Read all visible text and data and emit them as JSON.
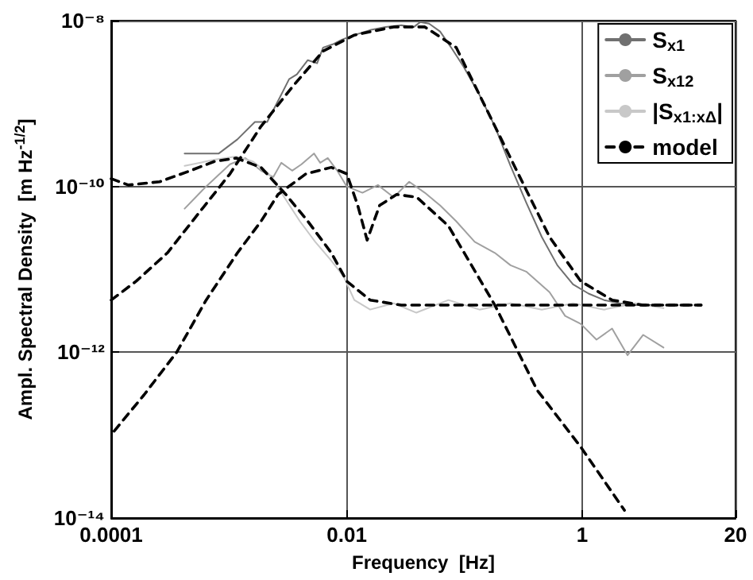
{
  "chart_data": {
    "type": "line",
    "xlabel": "Frequency  [Hz]",
    "ylabel": "Ampl. Spectral Density  [m Hz$^{-1/2}$]",
    "log": "xy",
    "grid": true,
    "legend": "top right",
    "marker": "none",
    "xlim": [
      0.0001,
      20
    ],
    "xticks": [
      0.0001,
      0.01,
      1,
      20
    ],
    "ylim": [
      1e-14,
      1e-08
    ],
    "yticks": [
      {
        "value": 1e-14,
        "label": "10⁻¹⁴"
      },
      {
        "value": 1e-12,
        "label": "10⁻¹²"
      },
      {
        "value": 1e-10,
        "label": "10⁻¹⁰"
      },
      {
        "value": 1e-08,
        "label": "10⁻⁸"
      }
    ],
    "series": [
      {
        "name": "S$_{x1}$",
        "color": "#707070",
        "line_style": "solid",
        "x": [
          0.00042,
          0.00082,
          0.00118,
          0.00166,
          0.00211,
          0.00269,
          0.00324,
          0.00377,
          0.00467,
          0.0056,
          0.0063,
          0.0076,
          0.0091,
          0.0116,
          0.0158,
          0.0214,
          0.0291,
          0.0372,
          0.042,
          0.05,
          0.062,
          0.077,
          0.098,
          0.134,
          0.181,
          0.246,
          0.334,
          0.453,
          0.614,
          0.834,
          1.13,
          1.53,
          2.08,
          2.82,
          4.89
        ],
        "values": [
          2.5e-10,
          2.5e-10,
          3.7e-10,
          6e-10,
          6e-10,
          1.17e-09,
          1.97e-09,
          2.25e-09,
          3.34e-09,
          3.06e-09,
          4.74e-09,
          5.18e-09,
          5.9e-09,
          6.7e-09,
          7.7e-09,
          8.4e-09,
          8.8e-09,
          8.4e-09,
          9.6e-09,
          9.2e-09,
          7.4e-09,
          4.74e-09,
          2.8e-09,
          1.27e-09,
          5.3e-10,
          1.77e-10,
          6.4e-11,
          2.46e-11,
          1.12e-11,
          6.6e-12,
          5.1e-12,
          4.26e-12,
          3.9e-12,
          3.7e-12,
          3.7e-12
        ]
      },
      {
        "name": "S$_{x12}$",
        "color": "#a0a0a0",
        "line_style": "solid",
        "x": [
          0.00042,
          0.00064,
          0.00102,
          0.00138,
          0.00187,
          0.00238,
          0.00278,
          0.00344,
          0.00413,
          0.00527,
          0.00595,
          0.0069,
          0.0083,
          0.01,
          0.0136,
          0.0184,
          0.025,
          0.0339,
          0.046,
          0.062,
          0.085,
          0.122,
          0.181,
          0.246,
          0.334,
          0.527,
          0.715,
          0.97,
          1.32,
          1.79,
          2.42,
          3.29,
          4.89
        ],
        "values": [
          5.4e-11,
          1e-10,
          1.85e-10,
          2.2e-10,
          1.55e-10,
          1.3e-10,
          1.93e-10,
          1.55e-10,
          1.85e-10,
          2.5e-10,
          1.93e-10,
          2.2e-10,
          1.55e-10,
          1e-10,
          8.4e-11,
          1.04e-10,
          7.4e-11,
          1.14e-10,
          8.4e-11,
          5.9e-11,
          3.8e-11,
          2.15e-11,
          1.58e-11,
          1.12e-11,
          9.4e-12,
          5.3e-12,
          2.74e-12,
          2.2e-12,
          1.42e-12,
          1.93e-12,
          9.2e-13,
          1.62e-12,
          1.14e-12
        ]
      },
      {
        "name": "|S$_{x1:xΔ}$|",
        "color": "#c8c8c8",
        "line_style": "solid",
        "x": [
          0.00042,
          0.00075,
          0.00115,
          0.0016,
          0.00218,
          0.00295,
          0.004,
          0.0054,
          0.0074,
          0.0094,
          0.0116,
          0.0158,
          0.025,
          0.039,
          0.073,
          0.134,
          0.246,
          0.453,
          0.834,
          1.53,
          2.82,
          4.89
        ],
        "values": [
          1.77e-10,
          2.1e-10,
          2.3e-10,
          2e-10,
          1.42e-10,
          7.4e-11,
          3.8e-11,
          2.15e-11,
          1.27e-11,
          8.2e-12,
          4.26e-12,
          3.27e-12,
          3.9e-12,
          3e-12,
          4.26e-12,
          3.27e-12,
          3.9e-12,
          3.27e-12,
          3.9e-12,
          3.27e-12,
          3.9e-12,
          3.4e-12
        ]
      },
      {
        "name": "model",
        "color": "#000000",
        "line_style": "dashed",
        "x": [
          0.0001,
          0.000163,
          0.0003,
          0.00055,
          0.00102,
          0.00187,
          0.00344,
          0.0063,
          0.0116,
          0.025,
          0.046,
          0.085,
          0.156,
          0.286,
          0.527,
          0.97,
          1.79,
          3.29,
          10.2
        ],
        "values": [
          4.26e-12,
          7.2e-12,
          1.58e-11,
          4.7e-11,
          1.42e-10,
          5.3e-10,
          1.58e-09,
          4.3e-09,
          6.7e-09,
          8.4e-09,
          8.4e-09,
          4.74e-09,
          8.2e-10,
          1.42e-10,
          2.46e-11,
          7.2e-12,
          4.26e-12,
          3.7e-12,
          3.7e-12
        ]
      },
      {
        "color": "#000000",
        "line_style": "dashed",
        "x": [
          0.0001,
          0.00014,
          0.000258,
          0.00047,
          0.00075,
          0.00115,
          0.00187,
          0.00304,
          0.00467,
          0.0074,
          0.01,
          0.0158,
          0.0291,
          10.2
        ],
        "values": [
          1.24e-10,
          1.04e-10,
          1.14e-10,
          1.55e-10,
          2e-10,
          2.2e-10,
          1.7e-10,
          8e-11,
          3.8e-11,
          1.58e-11,
          7.2e-12,
          4.26e-12,
          3.7e-12,
          3.7e-12
        ]
      },
      {
        "color": "#000000",
        "line_style": "dashed",
        "x": [
          0.000106,
          0.00019,
          0.00036,
          0.00064,
          0.00118,
          0.00187,
          0.00261,
          0.0045,
          0.0074,
          0.01,
          0.0124,
          0.0149,
          0.019,
          0.0265,
          0.0394,
          0.073,
          0.181,
          0.413,
          0.97,
          2.28
        ],
        "values": [
          1.12e-13,
          3.06e-13,
          1e-12,
          4.26e-12,
          1.58e-11,
          3.8e-11,
          8e-11,
          1.42e-10,
          1.7e-10,
          1.42e-10,
          5.9e-11,
          2.25e-11,
          5.9e-11,
          8e-11,
          7.4e-11,
          3.34e-11,
          3.7e-12,
          3.5e-13,
          7.2e-14,
          1.24e-14
        ]
      }
    ]
  }
}
